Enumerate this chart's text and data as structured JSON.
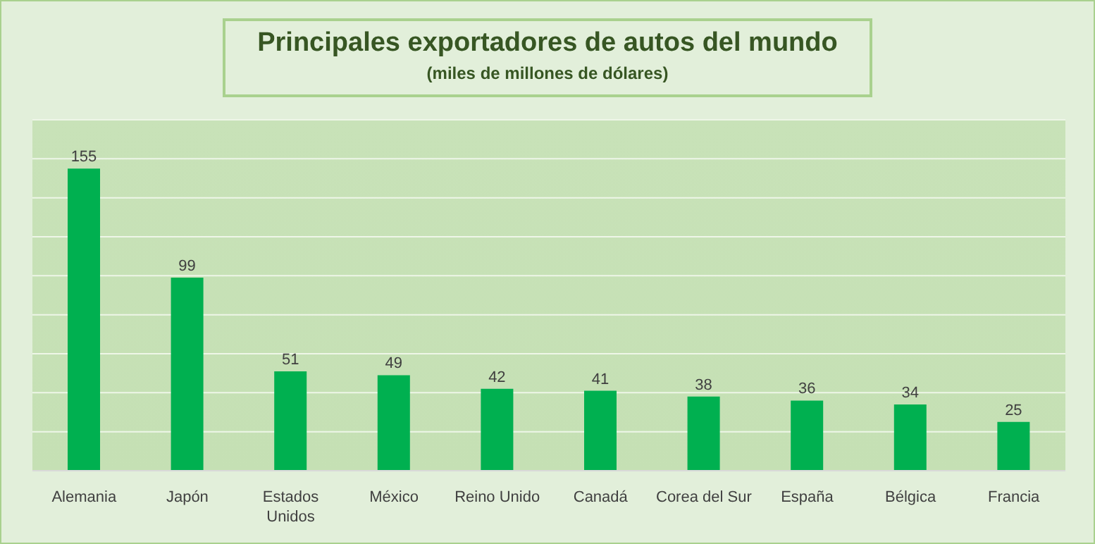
{
  "chart_data": {
    "type": "bar",
    "title": "Principales exportadores de autos del mundo",
    "subtitle": "(miles de millones de dólares)",
    "categories": [
      "Alemania",
      "Japón",
      "Estados Unidos",
      "México",
      "Reino Unido",
      "Canadá",
      "Corea del Sur",
      "España",
      "Bélgica",
      "Francia"
    ],
    "values": [
      155,
      99,
      51,
      49,
      42,
      41,
      38,
      36,
      34,
      25
    ],
    "color": "#00b050",
    "ylim": [
      0,
      180
    ],
    "grid": "y",
    "tick_labels": "x",
    "data_labels": true,
    "legend": false
  }
}
